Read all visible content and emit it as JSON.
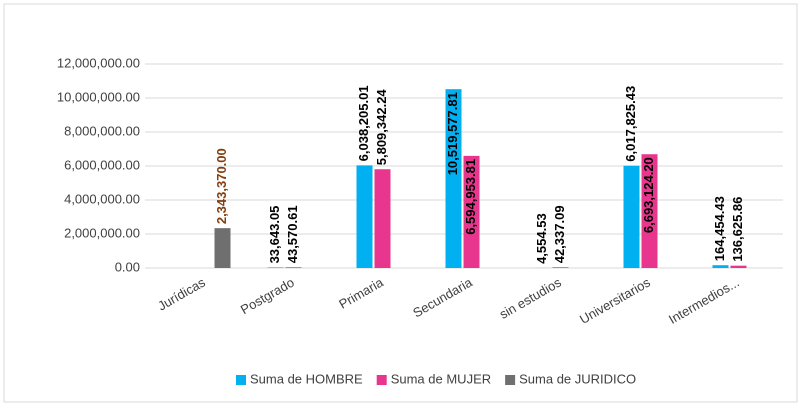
{
  "chart_data": {
    "type": "bar",
    "categories": [
      "Jurídicas",
      "Postgrado",
      "Primaria",
      "Secundaria",
      "sin estudios",
      "Universitarios",
      "Intermedios..."
    ],
    "series": [
      {
        "name": "Suma de HOMBRE",
        "color": "#00b0f0",
        "label_color": "#000000",
        "values": [
          null,
          33643.05,
          6038205.01,
          10519577.81,
          4554.53,
          6017825.43,
          164454.43
        ],
        "value_labels": [
          null,
          "33,643.05",
          "6,038,205.01",
          "10,519,577.81",
          "4,554.53",
          "6,017,825.43",
          "164,454.43"
        ]
      },
      {
        "name": "Suma de MUJER",
        "color": "#e8368f",
        "label_color": "#000000",
        "values": [
          null,
          43570.61,
          5809342.24,
          6594953.81,
          42337.09,
          6693124.2,
          136625.86
        ],
        "value_labels": [
          null,
          "43,570.61",
          "5,809,342.24",
          "6,594,953.81",
          "42,337.09",
          "6,693,124.20",
          "136,625.86"
        ]
      },
      {
        "name": "Suma de JURIDICO",
        "color": "#6f6f6f",
        "label_color": "#843c0c",
        "values": [
          2343370.0,
          null,
          null,
          null,
          null,
          null,
          null
        ],
        "value_labels": [
          "2,343,370.00",
          null,
          null,
          null,
          null,
          null,
          null
        ]
      }
    ],
    "ylim": [
      0,
      12000000
    ],
    "yticks": [
      {
        "value": 0,
        "label": "0.00"
      },
      {
        "value": 2000000,
        "label": "2,000,000.00"
      },
      {
        "value": 4000000,
        "label": "4,000,000.00"
      },
      {
        "value": 6000000,
        "label": "6,000,000.00"
      },
      {
        "value": 8000000,
        "label": "8,000,000.00"
      },
      {
        "value": 10000000,
        "label": "10,000,000.00"
      },
      {
        "value": 12000000,
        "label": "12,000,000.00"
      }
    ],
    "grid": true,
    "legend": "bottom"
  }
}
